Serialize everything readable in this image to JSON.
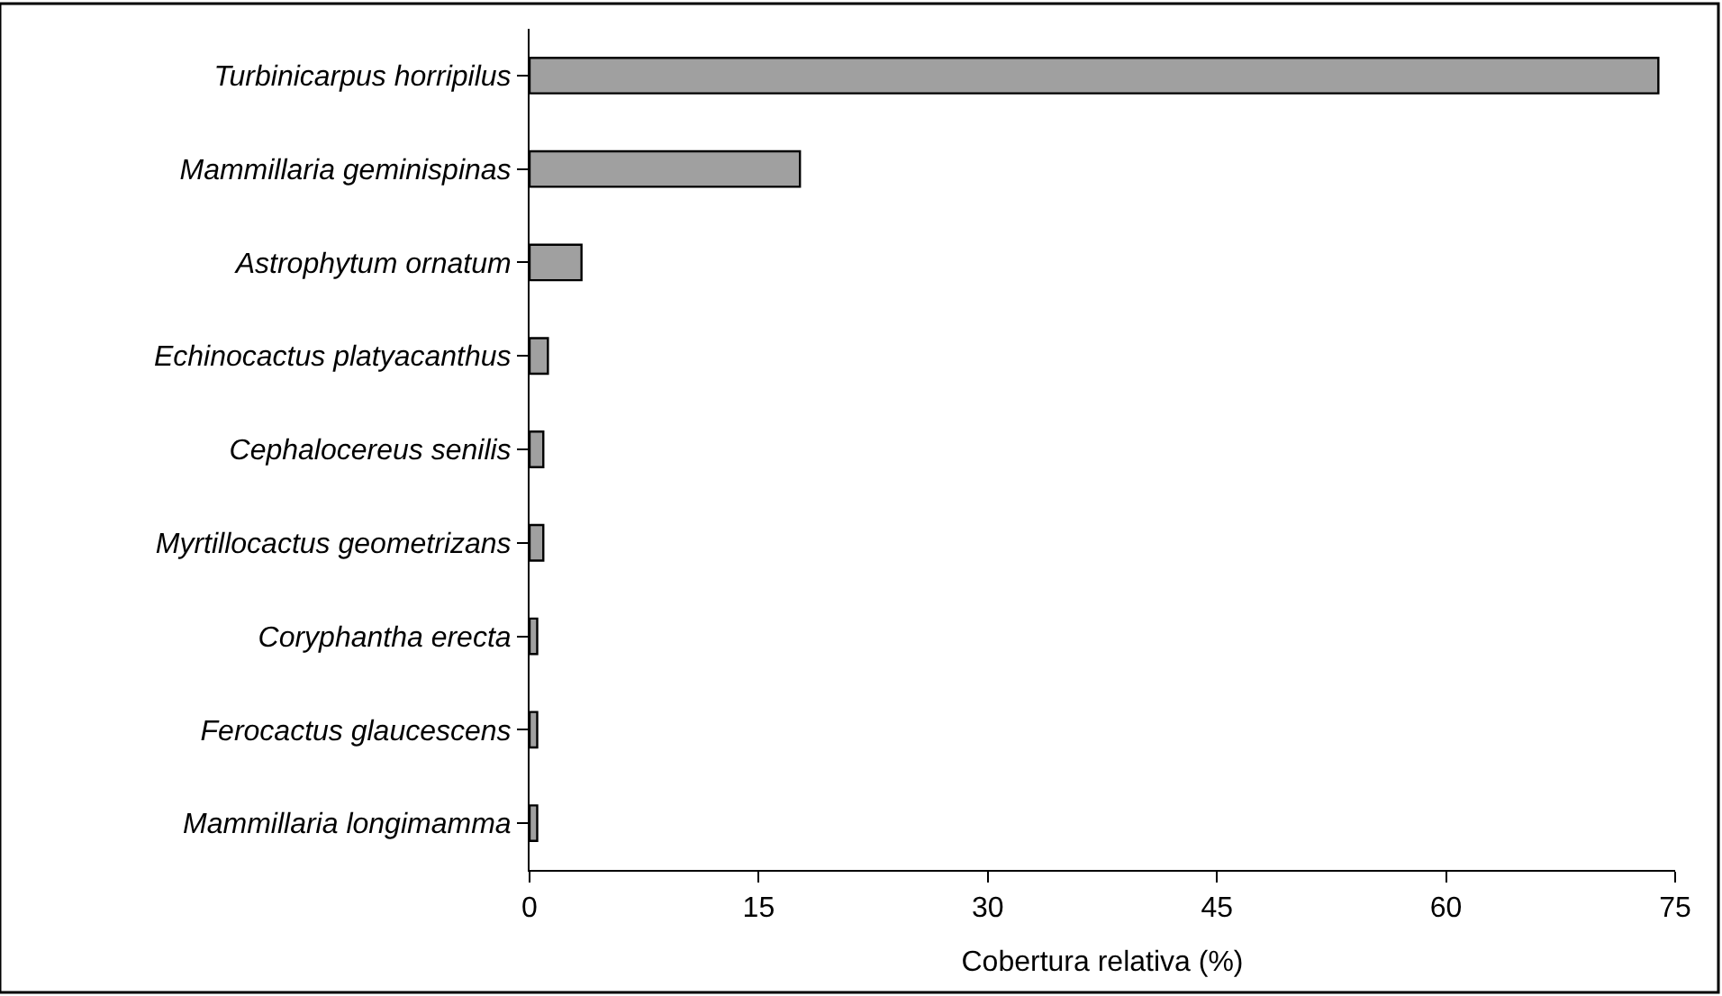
{
  "chart_data": {
    "type": "bar",
    "orientation": "horizontal",
    "xlabel": "Cobertura relativa (%)",
    "categories": [
      "Turbinicarpus horripilus",
      "Mammillaria geminispinas",
      "Astrophytum ornatum",
      "Echinocactus platyacanthus",
      "Cephalocereus senilis",
      "Myrtillocactus geometrizans",
      "Coryphantha erecta",
      "Ferocactus glaucescens",
      "Mammillaria longimamma"
    ],
    "values": [
      73.9,
      17.7,
      3.4,
      1.2,
      0.9,
      0.9,
      0.5,
      0.5,
      0.5
    ],
    "color": "#a0a0a0",
    "xlim": [
      0,
      75
    ],
    "xticks": [
      0,
      15,
      30,
      45,
      60,
      75
    ]
  }
}
